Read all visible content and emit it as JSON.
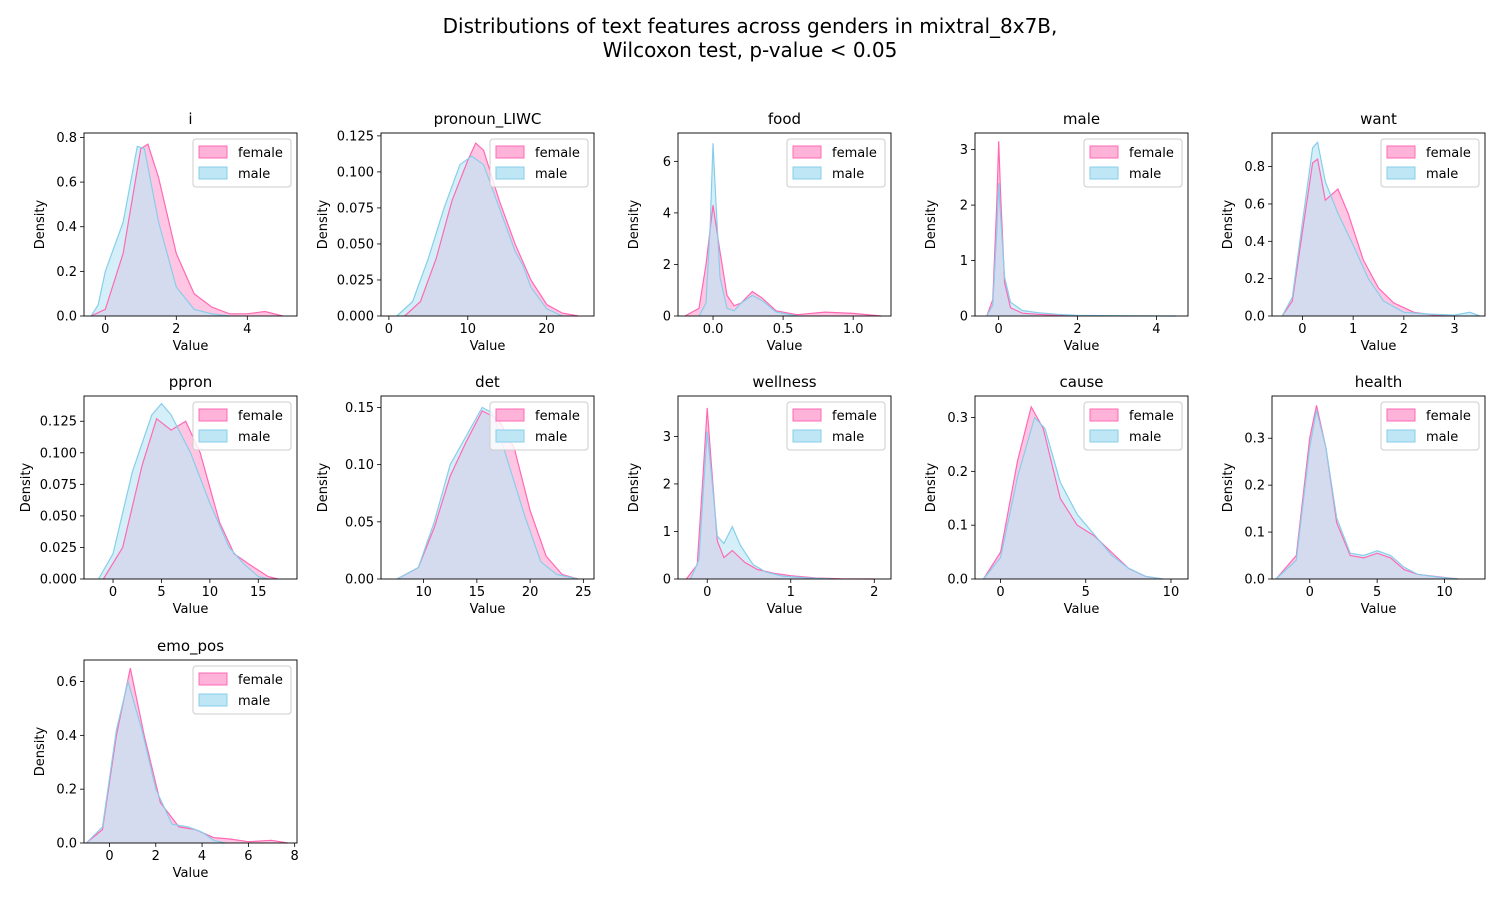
{
  "title_line1": "Distributions of text features across genders in mixtral_8x7B,",
  "title_line2": "Wilcoxon test, p-value < 0.05",
  "colors": {
    "female": "#ff69b4",
    "male": "#87ceeb",
    "female_fill": "#ffb3d9",
    "male_fill": "#bfe6f5"
  },
  "chart_data": [
    {
      "type": "area",
      "title": "i",
      "xlabel": "Value",
      "ylabel": "Density",
      "xlim": [
        -0.6,
        5.4
      ],
      "ylim": [
        0,
        0.82
      ],
      "xticks": [
        0,
        2,
        4
      ],
      "xtick_labels": [
        "0",
        "2",
        "4"
      ],
      "yticks": [
        0,
        0.2,
        0.4,
        0.6,
        0.8
      ],
      "ytick_labels": [
        "0.0",
        "0.2",
        "0.4",
        "0.6",
        "0.8"
      ],
      "legend": "upper-right",
      "series": [
        {
          "name": "female",
          "x": [
            -0.4,
            0,
            0.5,
            1.0,
            1.2,
            1.5,
            2.0,
            2.5,
            3.0,
            3.5,
            4.0,
            4.5,
            5.0
          ],
          "y": [
            0,
            0.03,
            0.28,
            0.75,
            0.77,
            0.62,
            0.28,
            0.1,
            0.04,
            0.01,
            0.01,
            0.02,
            0
          ]
        },
        {
          "name": "male",
          "x": [
            -0.4,
            -0.2,
            0,
            0.5,
            0.9,
            1.1,
            1.5,
            2.0,
            2.5,
            3.0,
            3.5
          ],
          "y": [
            0,
            0.05,
            0.2,
            0.42,
            0.76,
            0.75,
            0.42,
            0.13,
            0.03,
            0.01,
            0
          ]
        }
      ]
    },
    {
      "type": "area",
      "title": "pronoun_LIWC",
      "xlabel": "Value",
      "ylabel": "Density",
      "xlim": [
        -1,
        26
      ],
      "ylim": [
        0,
        0.127
      ],
      "xticks": [
        0,
        10,
        20
      ],
      "xtick_labels": [
        "0",
        "10",
        "20"
      ],
      "yticks": [
        0,
        0.025,
        0.05,
        0.075,
        0.1,
        0.125
      ],
      "ytick_labels": [
        "0.000",
        "0.025",
        "0.050",
        "0.075",
        "0.100",
        "0.125"
      ],
      "legend": "upper-right",
      "series": [
        {
          "name": "female",
          "x": [
            2,
            4,
            6,
            8,
            10,
            11,
            12,
            14,
            16,
            18,
            20,
            22,
            24
          ],
          "y": [
            0,
            0.01,
            0.04,
            0.08,
            0.108,
            0.12,
            0.115,
            0.08,
            0.05,
            0.025,
            0.008,
            0.002,
            0
          ]
        },
        {
          "name": "male",
          "x": [
            1,
            3,
            5,
            7,
            9,
            10.5,
            12,
            14,
            16,
            17,
            18,
            20,
            22
          ],
          "y": [
            0,
            0.01,
            0.04,
            0.075,
            0.105,
            0.111,
            0.105,
            0.075,
            0.045,
            0.035,
            0.02,
            0.005,
            0
          ]
        }
      ]
    },
    {
      "type": "area",
      "title": "food",
      "xlabel": "Value",
      "ylabel": "Density",
      "xlim": [
        -0.25,
        1.27
      ],
      "ylim": [
        0,
        7.1
      ],
      "xticks": [
        0,
        0.5,
        1.0
      ],
      "xtick_labels": [
        "0.0",
        "0.5",
        "1.0"
      ],
      "yticks": [
        0,
        2,
        4,
        6
      ],
      "ytick_labels": [
        "0",
        "2",
        "4",
        "6"
      ],
      "legend": "upper-right",
      "series": [
        {
          "name": "female",
          "x": [
            -0.2,
            -0.1,
            -0.05,
            0,
            0.05,
            0.1,
            0.15,
            0.2,
            0.28,
            0.35,
            0.45,
            0.6,
            0.8,
            1.0,
            1.2
          ],
          "y": [
            0,
            0.3,
            2.0,
            4.3,
            2.5,
            0.8,
            0.4,
            0.5,
            0.95,
            0.7,
            0.2,
            0.05,
            0.15,
            0.1,
            0
          ]
        },
        {
          "name": "male",
          "x": [
            -0.1,
            -0.05,
            -0.02,
            0,
            0.02,
            0.05,
            0.1,
            0.15,
            0.2,
            0.28,
            0.35,
            0.45,
            0.6
          ],
          "y": [
            0,
            0.5,
            3.5,
            6.7,
            4.5,
            1.5,
            0.3,
            0.2,
            0.5,
            0.8,
            0.6,
            0.15,
            0
          ]
        }
      ]
    },
    {
      "type": "area",
      "title": "male",
      "xlabel": "Value",
      "ylabel": "Density",
      "xlim": [
        -0.6,
        4.8
      ],
      "ylim": [
        0,
        3.3
      ],
      "xticks": [
        0,
        2,
        4
      ],
      "xtick_labels": [
        "0",
        "2",
        "4"
      ],
      "yticks": [
        0,
        1,
        2,
        3
      ],
      "ytick_labels": [
        "0",
        "1",
        "2",
        "3"
      ],
      "legend": "upper-right",
      "series": [
        {
          "name": "female",
          "x": [
            -0.3,
            -0.15,
            -0.05,
            0,
            0.05,
            0.15,
            0.3,
            0.6,
            1.0,
            1.5,
            2.0
          ],
          "y": [
            0,
            0.3,
            2.0,
            3.15,
            2.2,
            0.6,
            0.15,
            0.05,
            0.03,
            0.01,
            0
          ]
        },
        {
          "name": "male",
          "x": [
            -0.3,
            -0.15,
            -0.05,
            0,
            0.05,
            0.15,
            0.3,
            0.6,
            1.0,
            1.5,
            2.0,
            3.0,
            4.5
          ],
          "y": [
            0,
            0.2,
            1.5,
            2.4,
            1.8,
            0.7,
            0.25,
            0.1,
            0.06,
            0.03,
            0.01,
            0.005,
            0
          ]
        }
      ]
    },
    {
      "type": "area",
      "title": "want",
      "xlabel": "Value",
      "ylabel": "Density",
      "xlim": [
        -0.6,
        3.6
      ],
      "ylim": [
        0,
        0.98
      ],
      "xticks": [
        0,
        1,
        2,
        3
      ],
      "xtick_labels": [
        "0",
        "1",
        "2",
        "3"
      ],
      "yticks": [
        0,
        0.2,
        0.4,
        0.6,
        0.8
      ],
      "ytick_labels": [
        "0.0",
        "0.2",
        "0.4",
        "0.6",
        "0.8"
      ],
      "legend": "upper-right",
      "series": [
        {
          "name": "female",
          "x": [
            -0.4,
            -0.2,
            0,
            0.2,
            0.3,
            0.45,
            0.7,
            0.9,
            1.2,
            1.5,
            1.8,
            2.2,
            2.6,
            3.0
          ],
          "y": [
            0,
            0.08,
            0.45,
            0.82,
            0.84,
            0.62,
            0.68,
            0.55,
            0.3,
            0.15,
            0.07,
            0.02,
            0.005,
            0
          ]
        },
        {
          "name": "male",
          "x": [
            -0.4,
            -0.2,
            0,
            0.2,
            0.3,
            0.45,
            0.7,
            1.0,
            1.3,
            1.6,
            2.0,
            2.5,
            3.0,
            3.3,
            3.5
          ],
          "y": [
            0,
            0.1,
            0.5,
            0.9,
            0.93,
            0.72,
            0.55,
            0.38,
            0.2,
            0.08,
            0.02,
            0.01,
            0.005,
            0.02,
            0
          ]
        }
      ]
    },
    {
      "type": "area",
      "title": "ppron",
      "xlabel": "Value",
      "ylabel": "Density",
      "xlim": [
        -3,
        19
      ],
      "ylim": [
        0,
        0.145
      ],
      "xticks": [
        0,
        5,
        10,
        15
      ],
      "xtick_labels": [
        "0",
        "5",
        "10",
        "15"
      ],
      "yticks": [
        0,
        0.025,
        0.05,
        0.075,
        0.1,
        0.125
      ],
      "ytick_labels": [
        "0.000",
        "0.025",
        "0.050",
        "0.075",
        "0.100",
        "0.125"
      ],
      "legend": "upper-right",
      "series": [
        {
          "name": "female",
          "x": [
            -1,
            1,
            3,
            4.5,
            6,
            7.5,
            9,
            11,
            12.5,
            14,
            16,
            17
          ],
          "y": [
            0,
            0.025,
            0.09,
            0.127,
            0.118,
            0.125,
            0.1,
            0.045,
            0.02,
            0.012,
            0.002,
            0
          ]
        },
        {
          "name": "male",
          "x": [
            -1.5,
            0,
            2,
            4,
            5,
            6,
            8,
            10,
            12,
            13.5,
            15,
            16
          ],
          "y": [
            0,
            0.02,
            0.085,
            0.13,
            0.139,
            0.13,
            0.1,
            0.06,
            0.025,
            0.012,
            0.002,
            0
          ]
        }
      ]
    },
    {
      "type": "area",
      "title": "det",
      "xlabel": "Value",
      "ylabel": "Density",
      "xlim": [
        6,
        26
      ],
      "ylim": [
        0,
        0.16
      ],
      "xticks": [
        10,
        15,
        20,
        25
      ],
      "xtick_labels": [
        "10",
        "15",
        "20",
        "25"
      ],
      "yticks": [
        0,
        0.05,
        0.1,
        0.15
      ],
      "ytick_labels": [
        "0.00",
        "0.05",
        "0.10",
        "0.15"
      ],
      "legend": "upper-right",
      "series": [
        {
          "name": "female",
          "x": [
            7.5,
            9.5,
            11,
            12.5,
            14,
            15.5,
            17,
            18.5,
            20,
            21.5,
            23,
            24.5
          ],
          "y": [
            0,
            0.01,
            0.045,
            0.09,
            0.12,
            0.147,
            0.14,
            0.115,
            0.06,
            0.02,
            0.004,
            0
          ]
        },
        {
          "name": "male",
          "x": [
            7.5,
            9.5,
            11,
            12.5,
            14,
            15.5,
            16.5,
            18,
            19.5,
            21,
            22.5,
            24.5
          ],
          "y": [
            0,
            0.01,
            0.05,
            0.1,
            0.125,
            0.15,
            0.145,
            0.1,
            0.055,
            0.015,
            0.004,
            0
          ]
        }
      ]
    },
    {
      "type": "area",
      "title": "wellness",
      "xlabel": "Value",
      "ylabel": "Density",
      "xlim": [
        -0.35,
        2.2
      ],
      "ylim": [
        0,
        3.85
      ],
      "xticks": [
        0,
        1,
        2
      ],
      "xtick_labels": [
        "0",
        "1",
        "2"
      ],
      "yticks": [
        0,
        1,
        2,
        3
      ],
      "ytick_labels": [
        "0",
        "1",
        "2",
        "3"
      ],
      "legend": "upper-right",
      "series": [
        {
          "name": "female",
          "x": [
            -0.25,
            -0.12,
            -0.05,
            0,
            0.05,
            0.12,
            0.2,
            0.3,
            0.45,
            0.6,
            0.8,
            1.0,
            1.3,
            1.6,
            2.0
          ],
          "y": [
            0,
            0.3,
            2.2,
            3.6,
            2.4,
            0.8,
            0.45,
            0.6,
            0.35,
            0.2,
            0.12,
            0.07,
            0.02,
            0.005,
            0
          ]
        },
        {
          "name": "male",
          "x": [
            -0.2,
            -0.1,
            -0.03,
            0,
            0.05,
            0.12,
            0.2,
            0.3,
            0.4,
            0.55,
            0.7,
            0.9,
            1.2,
            1.5
          ],
          "y": [
            0,
            0.4,
            2.3,
            3.1,
            2.2,
            0.9,
            0.75,
            1.1,
            0.7,
            0.3,
            0.15,
            0.06,
            0.02,
            0
          ]
        }
      ]
    },
    {
      "type": "area",
      "title": "cause",
      "xlabel": "Value",
      "ylabel": "Density",
      "xlim": [
        -1.5,
        11
      ],
      "ylim": [
        0,
        0.34
      ],
      "xticks": [
        0,
        5,
        10
      ],
      "xtick_labels": [
        "0",
        "5",
        "10"
      ],
      "yticks": [
        0,
        0.1,
        0.2,
        0.3
      ],
      "ytick_labels": [
        "0.0",
        "0.1",
        "0.2",
        "0.3"
      ],
      "legend": "upper-right",
      "series": [
        {
          "name": "female",
          "x": [
            -1,
            0,
            1,
            1.8,
            2.5,
            3.5,
            4.5,
            5.5,
            6.5,
            7.5,
            8.5,
            9.5
          ],
          "y": [
            0,
            0.05,
            0.22,
            0.32,
            0.28,
            0.15,
            0.1,
            0.08,
            0.05,
            0.02,
            0.005,
            0
          ]
        },
        {
          "name": "male",
          "x": [
            -1,
            0,
            1,
            2,
            2.6,
            3.5,
            4.5,
            5.3,
            6.5,
            7.5,
            8.5,
            9.5
          ],
          "y": [
            0,
            0.04,
            0.19,
            0.3,
            0.28,
            0.18,
            0.12,
            0.09,
            0.045,
            0.02,
            0.005,
            0
          ]
        }
      ]
    },
    {
      "type": "area",
      "title": "health",
      "xlabel": "Value",
      "ylabel": "Density",
      "xlim": [
        -2.8,
        13
      ],
      "ylim": [
        0,
        0.39
      ],
      "xticks": [
        0,
        5,
        10
      ],
      "xtick_labels": [
        "0",
        "5",
        "10"
      ],
      "yticks": [
        0,
        0.1,
        0.2,
        0.3
      ],
      "ytick_labels": [
        "0.0",
        "0.1",
        "0.2",
        "0.3"
      ],
      "legend": "upper-right",
      "series": [
        {
          "name": "female",
          "x": [
            -2.5,
            -1,
            0,
            0.5,
            1.2,
            2,
            3,
            4,
            5,
            6,
            7,
            8,
            9.5,
            11
          ],
          "y": [
            0,
            0.05,
            0.3,
            0.37,
            0.28,
            0.12,
            0.05,
            0.045,
            0.055,
            0.045,
            0.02,
            0.01,
            0.005,
            0
          ]
        },
        {
          "name": "male",
          "x": [
            -2.5,
            -1,
            0,
            0.5,
            1.2,
            2,
            3,
            4,
            5,
            6,
            7,
            8,
            9.5,
            11
          ],
          "y": [
            0,
            0.04,
            0.28,
            0.36,
            0.28,
            0.13,
            0.055,
            0.05,
            0.06,
            0.05,
            0.025,
            0.01,
            0.004,
            0
          ]
        }
      ]
    },
    {
      "type": "area",
      "title": "emo_pos",
      "xlabel": "Value",
      "ylabel": "Density",
      "xlim": [
        -1.1,
        8.1
      ],
      "ylim": [
        0,
        0.68
      ],
      "xticks": [
        0,
        2,
        4,
        6,
        8
      ],
      "xtick_labels": [
        "0",
        "2",
        "4",
        "6",
        "8"
      ],
      "yticks": [
        0,
        0.2,
        0.4,
        0.6
      ],
      "ytick_labels": [
        "0.0",
        "0.2",
        "0.4",
        "0.6"
      ],
      "legend": "upper-right",
      "series": [
        {
          "name": "female",
          "x": [
            -1,
            -0.3,
            0.3,
            0.9,
            1.5,
            2.2,
            3.0,
            3.7,
            4.5,
            5.2,
            6.0,
            7.0,
            7.7
          ],
          "y": [
            0,
            0.05,
            0.4,
            0.65,
            0.4,
            0.15,
            0.06,
            0.05,
            0.02,
            0.015,
            0.005,
            0.01,
            0
          ]
        },
        {
          "name": "male",
          "x": [
            -1,
            -0.3,
            0.3,
            0.8,
            1.4,
            2.0,
            2.7,
            3.4,
            4.0,
            4.5,
            5.0
          ],
          "y": [
            0,
            0.06,
            0.42,
            0.6,
            0.42,
            0.2,
            0.07,
            0.06,
            0.04,
            0.01,
            0
          ]
        }
      ]
    }
  ]
}
